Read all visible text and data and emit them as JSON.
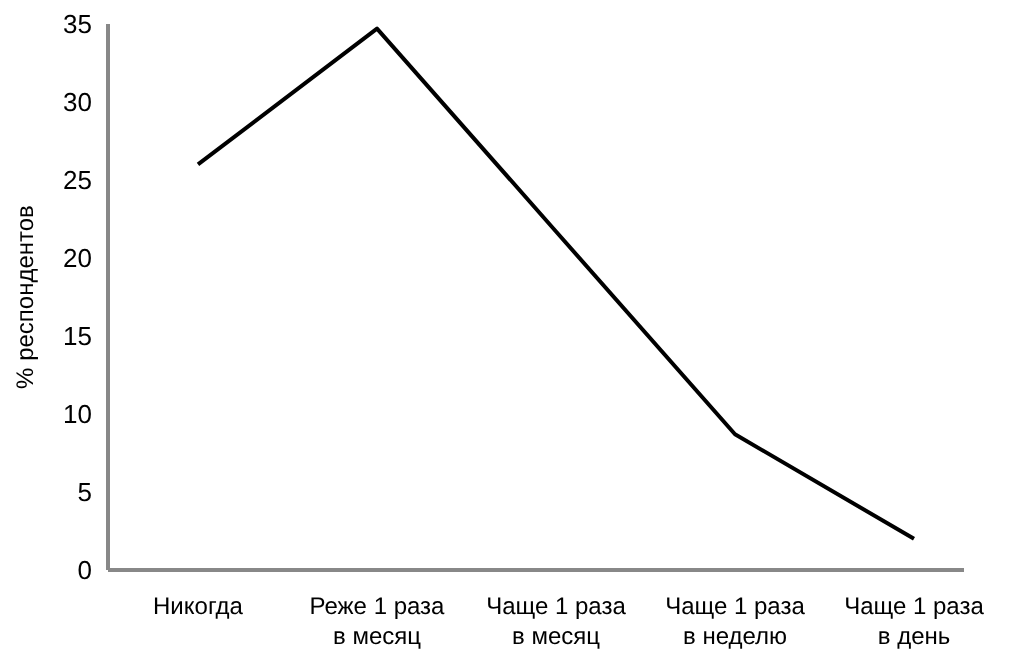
{
  "chart_data": {
    "type": "line",
    "ylabel": "% респондентов",
    "categories": [
      "Никогда",
      "Реже 1 раза\nв месяц",
      "Чаще 1 раза\nв месяц",
      "Чаще 1 раза\nв неделю",
      "Чаще 1 раза\nв день"
    ],
    "series": [
      {
        "color": "#000000",
        "values": [
          26,
          34.7,
          21.7,
          8.7,
          2
        ]
      }
    ],
    "ylim": [
      0,
      35
    ],
    "yticks": [
      0,
      5,
      10,
      15,
      20,
      25,
      30,
      35
    ],
    "grid": false,
    "legend": false,
    "marker": "none",
    "line_style": "solid"
  }
}
